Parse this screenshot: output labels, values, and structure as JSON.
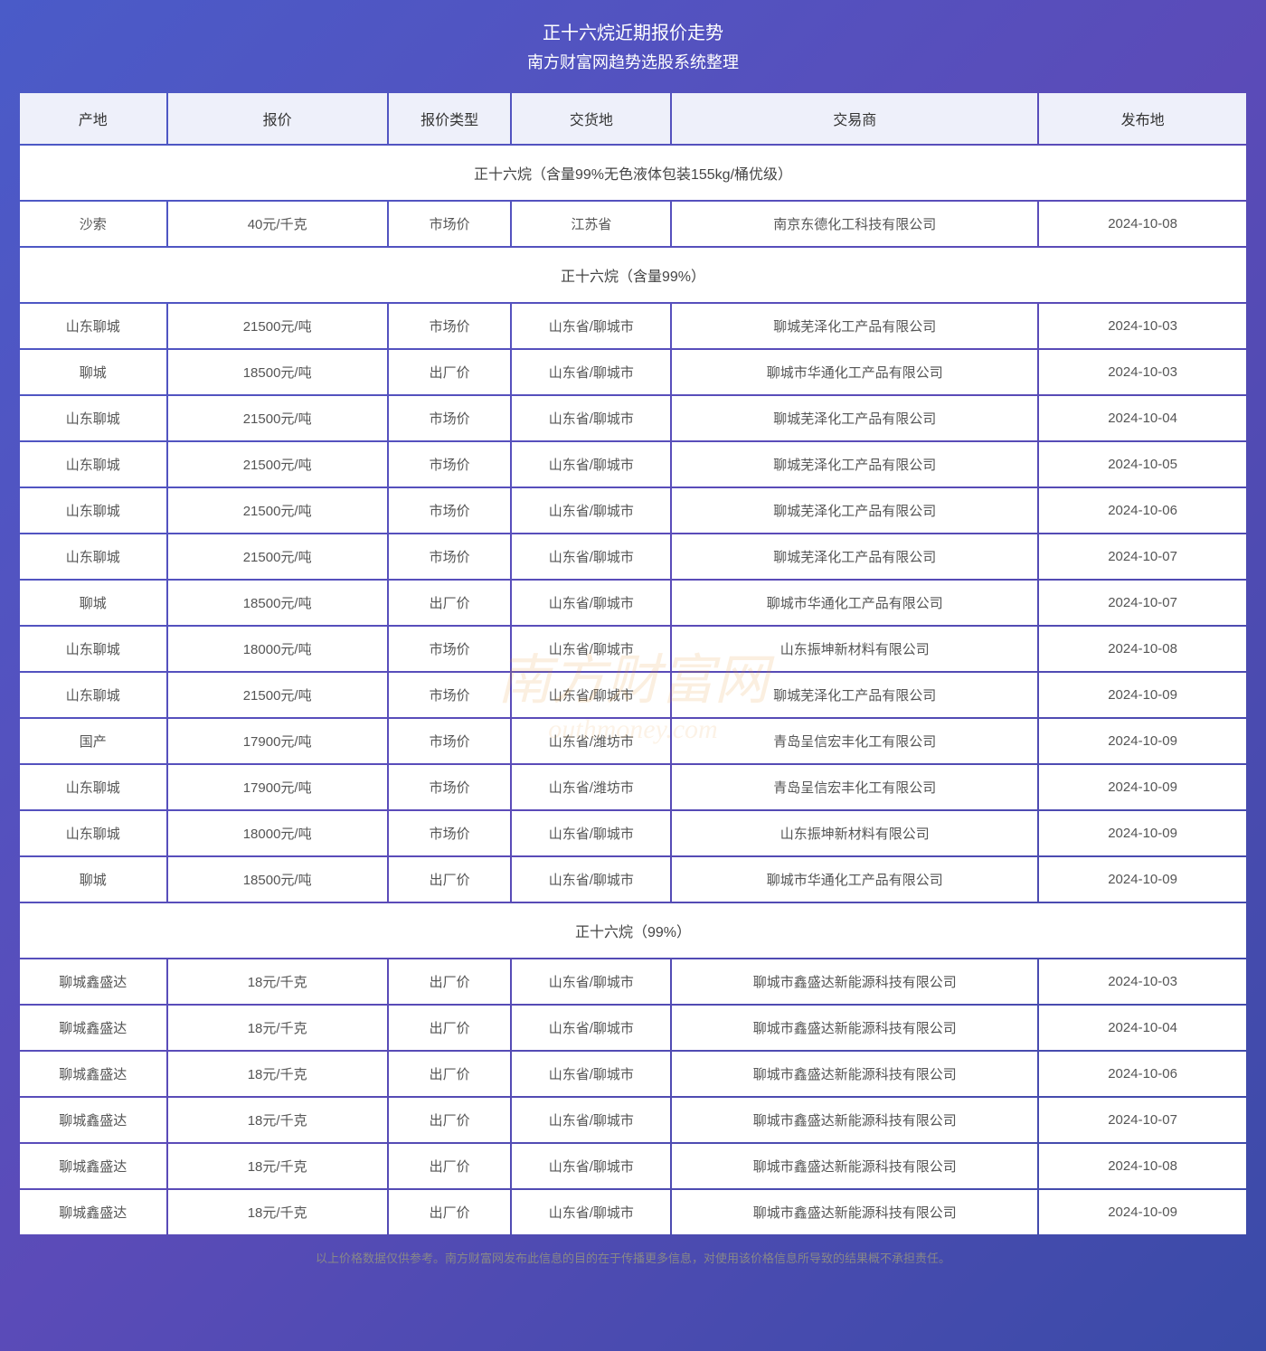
{
  "header": {
    "title": "正十六烷近期报价走势",
    "subtitle": "南方财富网趋势选股系统整理"
  },
  "columns": [
    "产地",
    "报价",
    "报价类型",
    "交货地",
    "交易商",
    "发布地"
  ],
  "sections": [
    {
      "title": "正十六烷（含量99%无色液体包装155kg/桶优级）",
      "rows": [
        [
          "沙索",
          "40元/千克",
          "市场价",
          "江苏省",
          "南京东德化工科技有限公司",
          "2024-10-08"
        ]
      ]
    },
    {
      "title": "正十六烷（含量99%）",
      "rows": [
        [
          "山东聊城",
          "21500元/吨",
          "市场价",
          "山东省/聊城市",
          "聊城芜泽化工产品有限公司",
          "2024-10-03"
        ],
        [
          "聊城",
          "18500元/吨",
          "出厂价",
          "山东省/聊城市",
          "聊城市华通化工产品有限公司",
          "2024-10-03"
        ],
        [
          "山东聊城",
          "21500元/吨",
          "市场价",
          "山东省/聊城市",
          "聊城芜泽化工产品有限公司",
          "2024-10-04"
        ],
        [
          "山东聊城",
          "21500元/吨",
          "市场价",
          "山东省/聊城市",
          "聊城芜泽化工产品有限公司",
          "2024-10-05"
        ],
        [
          "山东聊城",
          "21500元/吨",
          "市场价",
          "山东省/聊城市",
          "聊城芜泽化工产品有限公司",
          "2024-10-06"
        ],
        [
          "山东聊城",
          "21500元/吨",
          "市场价",
          "山东省/聊城市",
          "聊城芜泽化工产品有限公司",
          "2024-10-07"
        ],
        [
          "聊城",
          "18500元/吨",
          "出厂价",
          "山东省/聊城市",
          "聊城市华通化工产品有限公司",
          "2024-10-07"
        ],
        [
          "山东聊城",
          "18000元/吨",
          "市场价",
          "山东省/聊城市",
          "山东振坤新材料有限公司",
          "2024-10-08"
        ],
        [
          "山东聊城",
          "21500元/吨",
          "市场价",
          "山东省/聊城市",
          "聊城芜泽化工产品有限公司",
          "2024-10-09"
        ],
        [
          "国产",
          "17900元/吨",
          "市场价",
          "山东省/潍坊市",
          "青岛呈信宏丰化工有限公司",
          "2024-10-09"
        ],
        [
          "山东聊城",
          "17900元/吨",
          "市场价",
          "山东省/潍坊市",
          "青岛呈信宏丰化工有限公司",
          "2024-10-09"
        ],
        [
          "山东聊城",
          "18000元/吨",
          "市场价",
          "山东省/聊城市",
          "山东振坤新材料有限公司",
          "2024-10-09"
        ],
        [
          "聊城",
          "18500元/吨",
          "出厂价",
          "山东省/聊城市",
          "聊城市华通化工产品有限公司",
          "2024-10-09"
        ]
      ]
    },
    {
      "title": "正十六烷（99%）",
      "rows": [
        [
          "聊城鑫盛达",
          "18元/千克",
          "出厂价",
          "山东省/聊城市",
          "聊城市鑫盛达新能源科技有限公司",
          "2024-10-03"
        ],
        [
          "聊城鑫盛达",
          "18元/千克",
          "出厂价",
          "山东省/聊城市",
          "聊城市鑫盛达新能源科技有限公司",
          "2024-10-04"
        ],
        [
          "聊城鑫盛达",
          "18元/千克",
          "出厂价",
          "山东省/聊城市",
          "聊城市鑫盛达新能源科技有限公司",
          "2024-10-06"
        ],
        [
          "聊城鑫盛达",
          "18元/千克",
          "出厂价",
          "山东省/聊城市",
          "聊城市鑫盛达新能源科技有限公司",
          "2024-10-07"
        ],
        [
          "聊城鑫盛达",
          "18元/千克",
          "出厂价",
          "山东省/聊城市",
          "聊城市鑫盛达新能源科技有限公司",
          "2024-10-08"
        ],
        [
          "聊城鑫盛达",
          "18元/千克",
          "出厂价",
          "山东省/聊城市",
          "聊城市鑫盛达新能源科技有限公司",
          "2024-10-09"
        ]
      ]
    }
  ],
  "footer": "以上价格数据仅供参考。南方财富网发布此信息的目的在于传播更多信息，对使用该价格信息所导致的结果概不承担责任。",
  "watermark": {
    "main": "南方财富网",
    "sub": "outhmoney.com"
  },
  "styling": {
    "background_gradient": [
      "#4a5bc8",
      "#5b4bb8",
      "#3a4ba8"
    ],
    "header_bg": "#eef0fa",
    "cell_bg": "#ffffff",
    "header_text_color": "#333333",
    "cell_text_color": "#555555",
    "title_color": "#ffffff",
    "footer_color": "#888888",
    "watermark_color": "rgba(230, 150, 50, 0.15)"
  }
}
